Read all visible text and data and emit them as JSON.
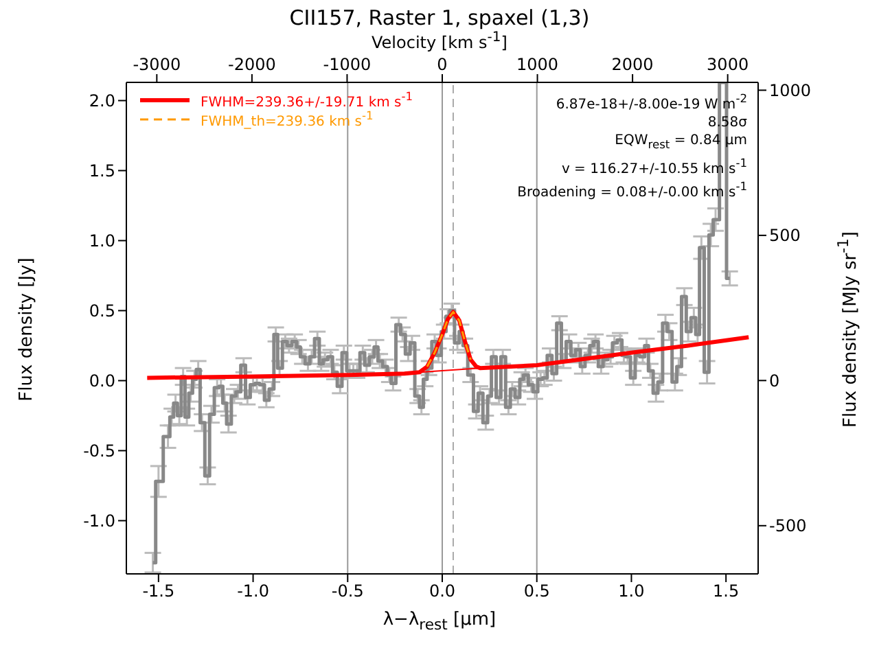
{
  "chart_data": {
    "type": "step",
    "title": "CII157, Raster 1, spaxel (1,3)",
    "xlabel": "λ−λ$_{rest}$ [µm]",
    "ylabel": "Flux density [Jy]",
    "y2label": "Flux density [MJy sr$^{-1}$]",
    "x2label": "Velocity [km s$^{-1}$]",
    "xlim": [
      -1.67,
      1.67
    ],
    "xticks": [
      {
        "value": -1.5,
        "label": "-1.5"
      },
      {
        "value": -1,
        "label": "-1.0"
      },
      {
        "value": -0.5,
        "label": "-0.5"
      },
      {
        "value": 0,
        "label": "0.0"
      },
      {
        "value": 0.5,
        "label": "0.5"
      },
      {
        "value": 1,
        "label": "1.0"
      },
      {
        "value": 1.5,
        "label": "1.5"
      }
    ],
    "ylim": [
      -1.38,
      2.13
    ],
    "yticks": [
      {
        "value": -1,
        "label": "-1.0"
      },
      {
        "value": -0.5,
        "label": "-0.5"
      },
      {
        "value": 0,
        "label": "0.0"
      },
      {
        "value": 0.5,
        "label": "0.5"
      },
      {
        "value": 1,
        "label": "1.0"
      },
      {
        "value": 1.5,
        "label": "1.5"
      },
      {
        "value": 2,
        "label": "2.0"
      }
    ],
    "x2lim": [
      -3320,
      3320
    ],
    "x2ticks": [
      -3000,
      -2000,
      -1000,
      0,
      1000,
      2000,
      3000
    ],
    "y2lim": [
      -666,
      1027
    ],
    "y2ticks": [
      -500,
      0,
      500,
      1000
    ],
    "grid": false,
    "legend": "top left",
    "marker": "none",
    "ref_lines": [
      {
        "axis": "x",
        "value": -0.5,
        "color": "#999999",
        "line_style": "solid"
      },
      {
        "axis": "x",
        "value": 0,
        "color": "#999999",
        "line_style": "solid"
      },
      {
        "axis": "x",
        "value": 0.5,
        "color": "#999999",
        "line_style": "solid"
      },
      {
        "axis": "x",
        "value": 0.058,
        "color": "#aaaaaa",
        "line_style": "dashed"
      }
    ],
    "annotations": [
      "6.87e-18+/-8.00e-19 W m$^{-2}$",
      "8.58σ",
      "EQW$_{rest}$ = 0.84 µm",
      "v = 116.27+/-10.55 km s$^{-1}$",
      "Broadening = 0.08+/-0.00 km s$^{-1}$"
    ],
    "series": [
      {
        "type": "step",
        "color": "#888888",
        "x": [
          -1.53,
          -1.5,
          -1.45,
          -1.43,
          -1.41,
          -1.39,
          -1.37,
          -1.35,
          -1.33,
          -1.31,
          -1.29,
          -1.27,
          -1.24,
          -1.22,
          -1.19,
          -1.17,
          -1.15,
          -1.13,
          -1.1,
          -1.08,
          -1.05,
          -1.03,
          -1,
          -0.98,
          -0.95,
          -0.93,
          -0.9,
          -0.88,
          -0.86,
          -0.83,
          -0.81,
          -0.78,
          -0.76,
          -0.74,
          -0.71,
          -0.69,
          -0.66,
          -0.64,
          -0.62,
          -0.59,
          -0.57,
          -0.54,
          -0.52,
          -0.49,
          -0.47,
          -0.45,
          -0.42,
          -0.4,
          -0.37,
          -0.35,
          -0.33,
          -0.3,
          -0.28,
          -0.26,
          -0.23,
          -0.21,
          -0.18,
          -0.16,
          -0.13,
          -0.11,
          -0.09,
          -0.07,
          -0.04,
          -0.02,
          0.01,
          0.03,
          0.05,
          0.08,
          0.1,
          0.12,
          0.15,
          0.18,
          0.2,
          0.23,
          0.25,
          0.27,
          0.3,
          0.32,
          0.35,
          0.37,
          0.4,
          0.42,
          0.44,
          0.47,
          0.49,
          0.52,
          0.54,
          0.57,
          0.59,
          0.62,
          0.64,
          0.67,
          0.69,
          0.72,
          0.74,
          0.77,
          0.79,
          0.81,
          0.84,
          0.86,
          0.89,
          0.91,
          0.94,
          0.96,
          0.98,
          1.01,
          1.03,
          1.06,
          1.08,
          1.1,
          1.13,
          1.15,
          1.18,
          1.2,
          1.23,
          1.25,
          1.28,
          1.3,
          1.33,
          1.35,
          1.37,
          1.4,
          1.42,
          1.445,
          1.486,
          1.52
        ],
        "values": [
          -1.3,
          -0.72,
          -0.4,
          -0.26,
          -0.16,
          -0.25,
          0.03,
          -0.26,
          -0.09,
          0.01,
          0.08,
          -0.3,
          -0.68,
          -0.24,
          -0.05,
          -0.04,
          -0.16,
          -0.31,
          -0.11,
          -0.08,
          0.11,
          -0.12,
          -0.03,
          -0.02,
          -0.03,
          -0.14,
          -0.06,
          0.33,
          0.09,
          0.28,
          0.25,
          0.28,
          0.24,
          0.17,
          0.12,
          0.17,
          0.3,
          0.12,
          0.15,
          0.17,
          0.06,
          -0.04,
          0.2,
          0.07,
          0.07,
          0.07,
          0.2,
          0.11,
          0.17,
          0.24,
          0.14,
          0.1,
          0.04,
          -0.02,
          0.4,
          0.33,
          0.19,
          0.27,
          -0.11,
          -0.19,
          0.01,
          0.09,
          0.28,
          0.18,
          0.35,
          0.46,
          0.5,
          0.27,
          0.35,
          0.25,
          0.04,
          -0.22,
          -0.09,
          -0.3,
          -0.11,
          0.17,
          -0.12,
          0.17,
          -0.19,
          -0.06,
          -0.12,
          0.01,
          0.04,
          -0.03,
          -0.08,
          0.01,
          0.02,
          0.18,
          0.05,
          0.41,
          0.14,
          0.28,
          0.18,
          0.22,
          0.1,
          0.18,
          0.25,
          0.28,
          0.1,
          0.15,
          0.17,
          0.27,
          0.29,
          0.18,
          0.17,
          0.02,
          0.18,
          0.17,
          0.25,
          0.07,
          -0.09,
          -0.01,
          0.41,
          0.35,
          -0.01,
          0.1,
          0.6,
          0.35,
          0.45,
          0.33,
          0.95,
          0.06,
          1.04,
          1.15,
          2.13,
          0.73
        ],
        "errors": [
          0.07,
          0.11,
          0.08,
          0.06,
          0.06,
          0.06,
          0.06,
          0.06,
          0.06,
          0.06,
          0.06,
          0.06,
          0.06,
          0.06,
          0.06,
          0.06,
          0.06,
          0.06,
          0.05,
          0.05,
          0.05,
          0.05,
          0.05,
          0.05,
          0.05,
          0.05,
          0.05,
          0.05,
          0.05,
          0.05,
          0.05,
          0.05,
          0.05,
          0.05,
          0.05,
          0.05,
          0.05,
          0.05,
          0.05,
          0.05,
          0.05,
          0.05,
          0.05,
          0.05,
          0.05,
          0.05,
          0.05,
          0.05,
          0.05,
          0.05,
          0.05,
          0.05,
          0.05,
          0.05,
          0.05,
          0.05,
          0.05,
          0.05,
          0.05,
          0.05,
          0.05,
          0.05,
          0.05,
          0.05,
          0.05,
          0.05,
          0.05,
          0.05,
          0.05,
          0.05,
          0.05,
          0.05,
          0.05,
          0.05,
          0.05,
          0.05,
          0.05,
          0.05,
          0.05,
          0.05,
          0.05,
          0.05,
          0.05,
          0.05,
          0.05,
          0.05,
          0.05,
          0.05,
          0.05,
          0.05,
          0.05,
          0.05,
          0.05,
          0.05,
          0.05,
          0.05,
          0.05,
          0.05,
          0.05,
          0.05,
          0.05,
          0.05,
          0.05,
          0.05,
          0.05,
          0.05,
          0.05,
          0.05,
          0.05,
          0.05,
          0.06,
          0.06,
          0.06,
          0.06,
          0.06,
          0.06,
          0.06,
          0.07,
          0.07,
          0.07,
          0.08,
          0.08,
          0.08,
          0.08,
          null,
          0.05
        ]
      },
      {
        "type": "line",
        "name": "FWHM=239.36+/-19.71 km s$^{-1}$",
        "color": "#ff0000",
        "x": [
          -1.56,
          -1,
          -0.5,
          -0.2,
          -0.12,
          -0.08,
          -0.04,
          0,
          0.03,
          0.058,
          0.09,
          0.12,
          0.15,
          0.18,
          0.2,
          0.5,
          1,
          1.3,
          1.62
        ],
        "values": [
          0.02,
          0.03,
          0.04,
          0.05,
          0.06,
          0.1,
          0.2,
          0.33,
          0.44,
          0.49,
          0.43,
          0.28,
          0.15,
          0.1,
          0.09,
          0.11,
          0.2,
          0.25,
          0.31
        ]
      },
      {
        "type": "line",
        "name": "FWHM_th=239.36 km s$^{-1}$",
        "color": "#ff9900",
        "line_style": "dashed",
        "x": [
          -0.08,
          -0.04,
          0,
          0.03,
          0.058,
          0.09,
          0.12,
          0.15
        ],
        "values": [
          0.1,
          0.2,
          0.33,
          0.44,
          0.49,
          0.43,
          0.28,
          0.15
        ]
      },
      {
        "type": "line",
        "color": "#ff0000",
        "x": [
          -0.12,
          0.2
        ],
        "values": [
          0.06,
          0.09
        ]
      }
    ]
  }
}
